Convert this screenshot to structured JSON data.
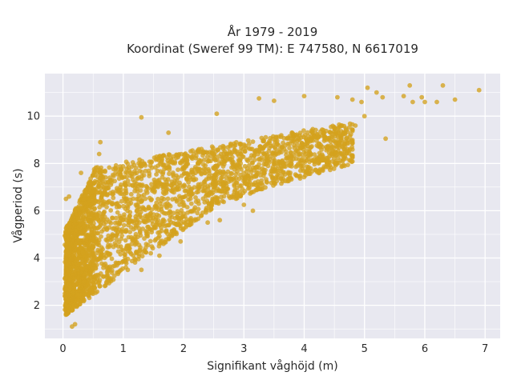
{
  "chart_data": {
    "type": "scatter",
    "title_line1": "År 1979 - 2019",
    "title_line2": "Koordinat (Sweref 99 TM): E 747580, N 6617019",
    "xlabel": "Signifikant våghöjd (m)",
    "ylabel": "Vågperiod (s)",
    "xlim": [
      -0.3,
      7.25
    ],
    "ylim": [
      0.6,
      11.8
    ],
    "xticks": [
      0,
      1,
      2,
      3,
      4,
      5,
      6,
      7
    ],
    "yticks": [
      2,
      4,
      6,
      8,
      10
    ],
    "xtick_labels": [
      "0",
      "1",
      "2",
      "3",
      "4",
      "5",
      "6",
      "7"
    ],
    "ytick_labels": [
      "2",
      "4",
      "6",
      "8",
      "10"
    ],
    "grid": true,
    "marker_color": "#d4a21e",
    "plot_bg": "#e8e8f0",
    "outliers": [
      [
        6.9,
        11.1
      ],
      [
        6.5,
        10.7
      ],
      [
        6.3,
        11.3
      ],
      [
        6.2,
        10.6
      ],
      [
        6.0,
        10.6
      ],
      [
        5.95,
        10.8
      ],
      [
        5.8,
        10.6
      ],
      [
        5.75,
        11.3
      ],
      [
        5.65,
        10.85
      ],
      [
        5.3,
        10.8
      ],
      [
        5.2,
        11.0
      ],
      [
        5.05,
        11.2
      ],
      [
        5.0,
        10.0
      ],
      [
        4.95,
        10.6
      ],
      [
        4.8,
        10.7
      ],
      [
        4.55,
        10.8
      ],
      [
        4.0,
        10.85
      ],
      [
        3.5,
        10.65
      ],
      [
        3.25,
        10.75
      ],
      [
        4.3,
        8.7
      ],
      [
        4.05,
        8.95
      ],
      [
        3.15,
        6.0
      ],
      [
        3.0,
        6.25
      ],
      [
        2.4,
        5.5
      ],
      [
        2.6,
        5.6
      ],
      [
        1.3,
        9.95
      ],
      [
        1.75,
        9.3
      ],
      [
        0.6,
        8.4
      ],
      [
        0.62,
        8.9
      ],
      [
        0.3,
        7.6
      ],
      [
        0.1,
        6.6
      ],
      [
        0.05,
        6.5
      ],
      [
        1.6,
        4.1
      ],
      [
        1.95,
        4.7
      ],
      [
        1.3,
        3.5
      ],
      [
        0.15,
        1.1
      ],
      [
        0.2,
        1.2
      ],
      [
        5.35,
        9.05
      ],
      [
        4.85,
        9.6
      ],
      [
        2.55,
        10.1
      ]
    ]
  }
}
